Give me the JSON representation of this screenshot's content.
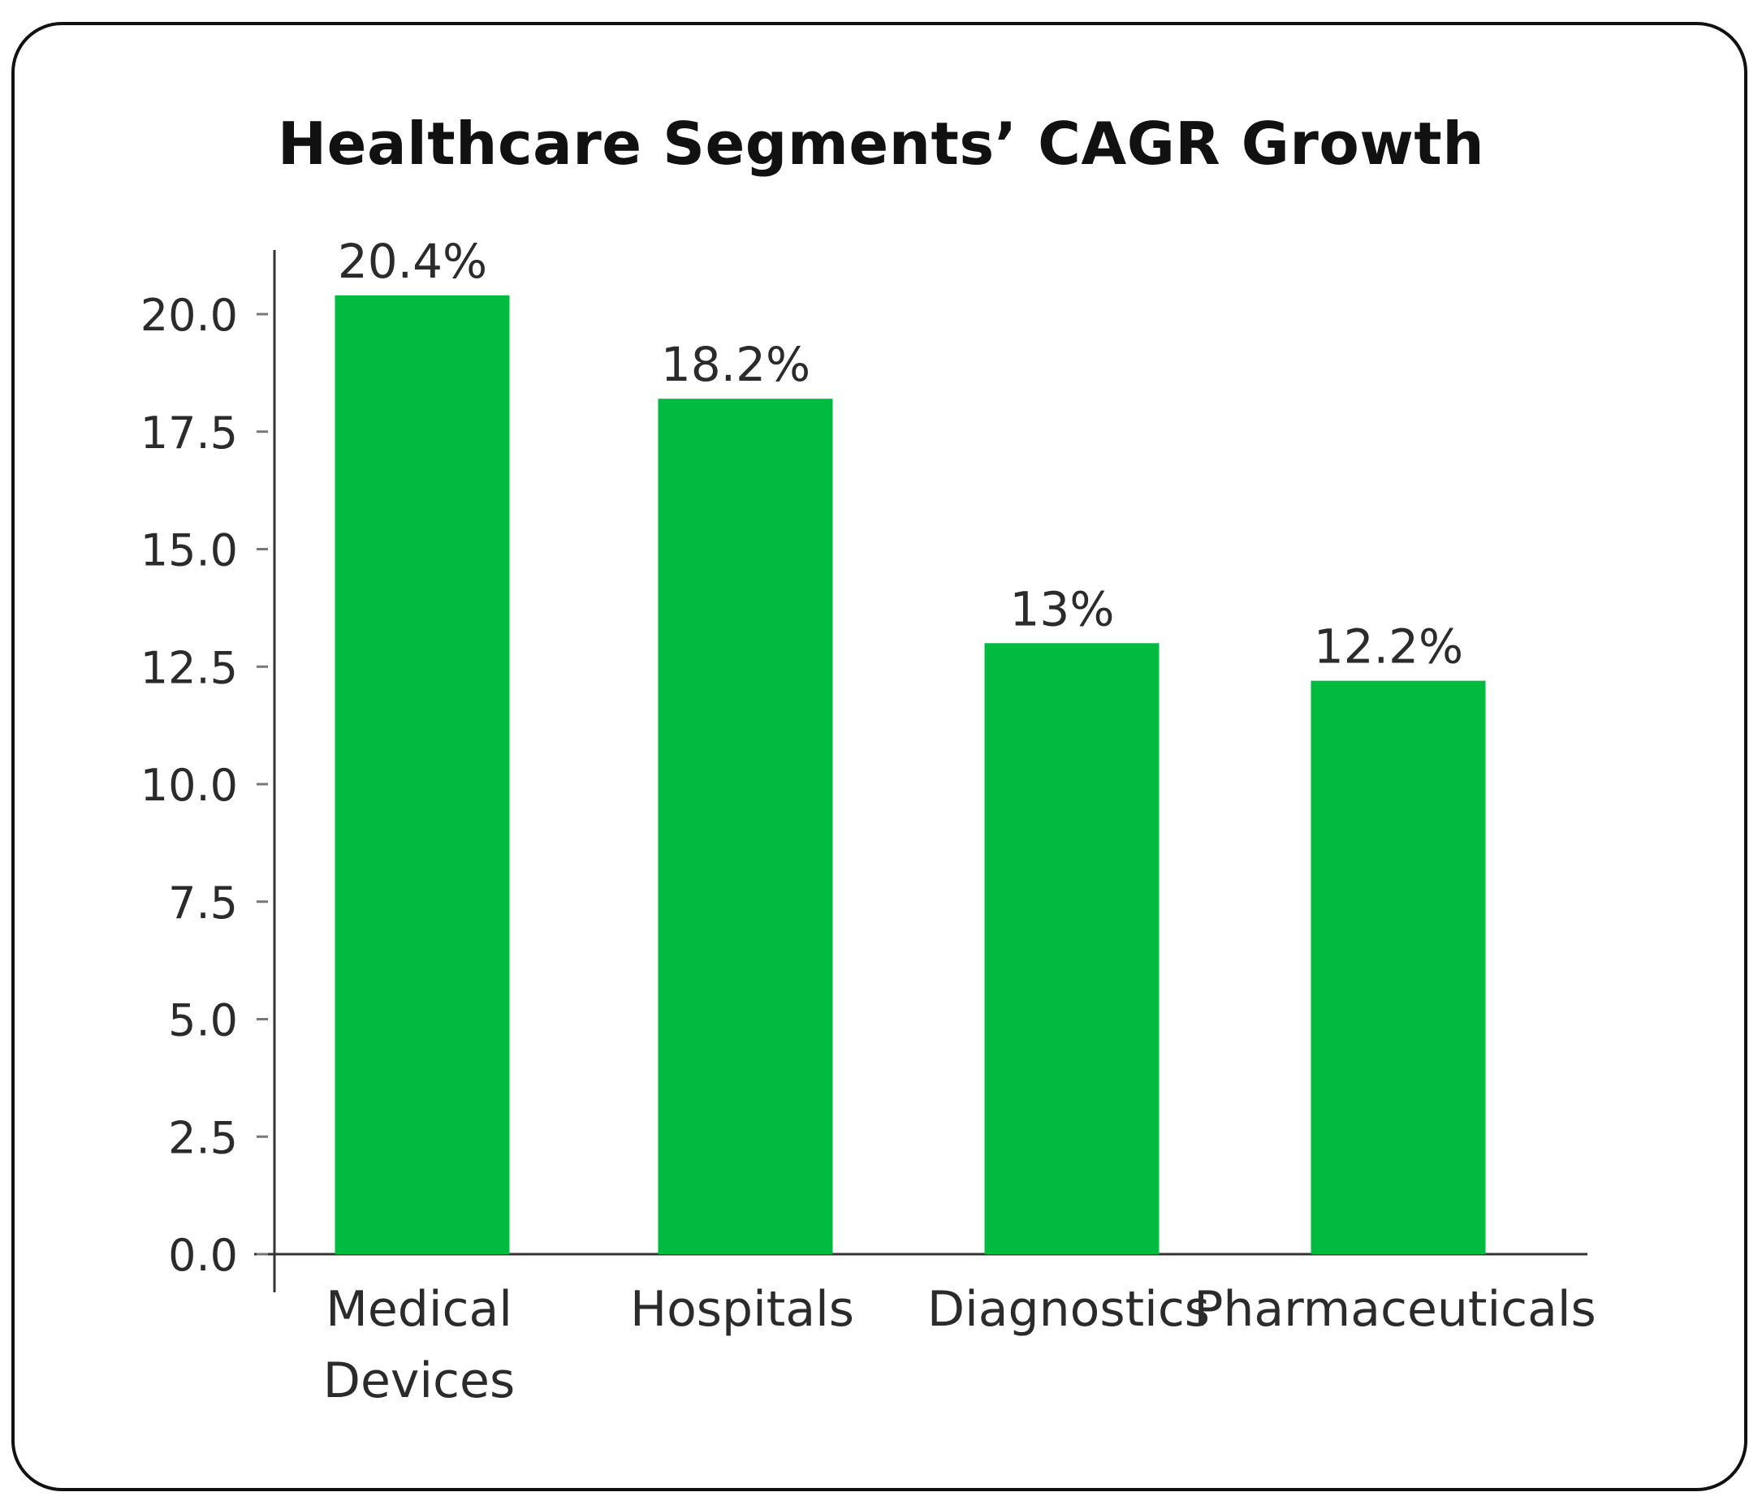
{
  "chart_data": {
    "type": "bar",
    "title": "Healthcare Segments’ CAGR Growth",
    "xlabel": "",
    "ylabel": "",
    "categories": [
      "Medical\nDevices",
      "Hospitals",
      "Diagnostics",
      "Pharmaceuticals"
    ],
    "values": [
      20.4,
      18.2,
      13,
      12.2
    ],
    "data_labels": [
      "20.4%",
      "18.2%",
      "13%",
      "12.2%"
    ],
    "ylim": [
      0,
      20.8
    ],
    "yticks": [
      0.0,
      2.5,
      5.0,
      7.5,
      10.0,
      12.5,
      15.0,
      17.5,
      20.0
    ],
    "ytick_labels": [
      "0.0",
      "2.5",
      "5.0",
      "7.5",
      "10.0",
      "12.5",
      "15.0",
      "17.5",
      "20.0"
    ],
    "grid": false,
    "legend": "none",
    "bar_color": "#00bb40",
    "axis_color": "#333333"
  }
}
